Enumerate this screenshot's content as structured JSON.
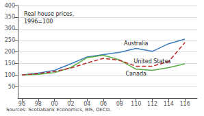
{
  "chart_data": {
    "type": "line",
    "annotations": [
      "Real house prices,\n1996=100",
      "Sources: Scotiabank Economics, BIS, OECD."
    ],
    "x": [
      96,
      98,
      100,
      102,
      104,
      106,
      108,
      110,
      112,
      114,
      116
    ],
    "series": [
      {
        "name": "Australia",
        "color": "#3a7bbf",
        "values": [
          100,
          108,
          120,
          148,
          178,
          188,
          198,
          215,
          202,
          235,
          255
        ]
      },
      {
        "name": "Canada",
        "color": "#5aaa45",
        "values": [
          100,
          103,
          110,
          132,
          175,
          185,
          165,
          125,
          120,
          132,
          148
        ]
      },
      {
        "name": "United States",
        "color": "#bb2222",
        "line_style": "dashed",
        "values": [
          100,
          106,
          115,
          130,
          152,
          172,
          163,
          138,
          138,
          158,
          240
        ]
      }
    ],
    "xlim": [
      95.5,
      117.5
    ],
    "xticks": [
      96,
      98,
      {
        "value": 100,
        "label": "00"
      },
      {
        "value": 102,
        "label": "02"
      },
      {
        "value": 104,
        "label": "04"
      },
      {
        "value": 106,
        "label": "06"
      },
      {
        "value": 108,
        "label": "08"
      },
      110,
      112,
      114,
      116
    ],
    "ylim": [
      0,
      400
    ],
    "yticks": [
      50,
      100,
      150,
      200,
      250,
      300,
      350,
      400
    ],
    "grid": true
  }
}
